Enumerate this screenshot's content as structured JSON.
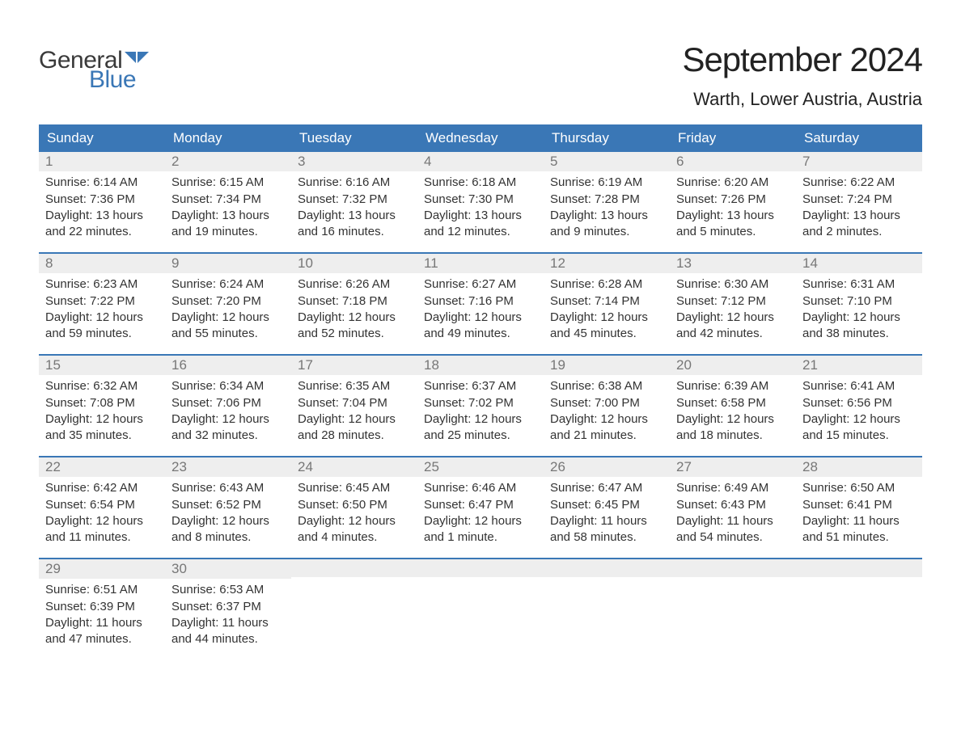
{
  "brand": {
    "word1": "General",
    "word2": "Blue",
    "word1_color": "#3a3a3a",
    "word2_color": "#3a77b6",
    "flag_color": "#3a77b6"
  },
  "title": "September 2024",
  "location": "Warth, Lower Austria, Austria",
  "colors": {
    "header_bg": "#3a77b6",
    "header_text": "#ffffff",
    "daynum_bg": "#eeeeee",
    "daynum_text": "#777777",
    "body_text": "#333333",
    "week_border": "#3a77b6",
    "page_bg": "#ffffff"
  },
  "font": {
    "family": "Arial",
    "title_size_pt": 32,
    "location_size_pt": 17,
    "dayhead_size_pt": 13,
    "daynum_size_pt": 13,
    "body_size_pt": 11
  },
  "day_headers": [
    "Sunday",
    "Monday",
    "Tuesday",
    "Wednesday",
    "Thursday",
    "Friday",
    "Saturday"
  ],
  "weeks": [
    [
      {
        "n": "1",
        "sunrise": "Sunrise: 6:14 AM",
        "sunset": "Sunset: 7:36 PM",
        "d1": "Daylight: 13 hours",
        "d2": "and 22 minutes."
      },
      {
        "n": "2",
        "sunrise": "Sunrise: 6:15 AM",
        "sunset": "Sunset: 7:34 PM",
        "d1": "Daylight: 13 hours",
        "d2": "and 19 minutes."
      },
      {
        "n": "3",
        "sunrise": "Sunrise: 6:16 AM",
        "sunset": "Sunset: 7:32 PM",
        "d1": "Daylight: 13 hours",
        "d2": "and 16 minutes."
      },
      {
        "n": "4",
        "sunrise": "Sunrise: 6:18 AM",
        "sunset": "Sunset: 7:30 PM",
        "d1": "Daylight: 13 hours",
        "d2": "and 12 minutes."
      },
      {
        "n": "5",
        "sunrise": "Sunrise: 6:19 AM",
        "sunset": "Sunset: 7:28 PM",
        "d1": "Daylight: 13 hours",
        "d2": "and 9 minutes."
      },
      {
        "n": "6",
        "sunrise": "Sunrise: 6:20 AM",
        "sunset": "Sunset: 7:26 PM",
        "d1": "Daylight: 13 hours",
        "d2": "and 5 minutes."
      },
      {
        "n": "7",
        "sunrise": "Sunrise: 6:22 AM",
        "sunset": "Sunset: 7:24 PM",
        "d1": "Daylight: 13 hours",
        "d2": "and 2 minutes."
      }
    ],
    [
      {
        "n": "8",
        "sunrise": "Sunrise: 6:23 AM",
        "sunset": "Sunset: 7:22 PM",
        "d1": "Daylight: 12 hours",
        "d2": "and 59 minutes."
      },
      {
        "n": "9",
        "sunrise": "Sunrise: 6:24 AM",
        "sunset": "Sunset: 7:20 PM",
        "d1": "Daylight: 12 hours",
        "d2": "and 55 minutes."
      },
      {
        "n": "10",
        "sunrise": "Sunrise: 6:26 AM",
        "sunset": "Sunset: 7:18 PM",
        "d1": "Daylight: 12 hours",
        "d2": "and 52 minutes."
      },
      {
        "n": "11",
        "sunrise": "Sunrise: 6:27 AM",
        "sunset": "Sunset: 7:16 PM",
        "d1": "Daylight: 12 hours",
        "d2": "and 49 minutes."
      },
      {
        "n": "12",
        "sunrise": "Sunrise: 6:28 AM",
        "sunset": "Sunset: 7:14 PM",
        "d1": "Daylight: 12 hours",
        "d2": "and 45 minutes."
      },
      {
        "n": "13",
        "sunrise": "Sunrise: 6:30 AM",
        "sunset": "Sunset: 7:12 PM",
        "d1": "Daylight: 12 hours",
        "d2": "and 42 minutes."
      },
      {
        "n": "14",
        "sunrise": "Sunrise: 6:31 AM",
        "sunset": "Sunset: 7:10 PM",
        "d1": "Daylight: 12 hours",
        "d2": "and 38 minutes."
      }
    ],
    [
      {
        "n": "15",
        "sunrise": "Sunrise: 6:32 AM",
        "sunset": "Sunset: 7:08 PM",
        "d1": "Daylight: 12 hours",
        "d2": "and 35 minutes."
      },
      {
        "n": "16",
        "sunrise": "Sunrise: 6:34 AM",
        "sunset": "Sunset: 7:06 PM",
        "d1": "Daylight: 12 hours",
        "d2": "and 32 minutes."
      },
      {
        "n": "17",
        "sunrise": "Sunrise: 6:35 AM",
        "sunset": "Sunset: 7:04 PM",
        "d1": "Daylight: 12 hours",
        "d2": "and 28 minutes."
      },
      {
        "n": "18",
        "sunrise": "Sunrise: 6:37 AM",
        "sunset": "Sunset: 7:02 PM",
        "d1": "Daylight: 12 hours",
        "d2": "and 25 minutes."
      },
      {
        "n": "19",
        "sunrise": "Sunrise: 6:38 AM",
        "sunset": "Sunset: 7:00 PM",
        "d1": "Daylight: 12 hours",
        "d2": "and 21 minutes."
      },
      {
        "n": "20",
        "sunrise": "Sunrise: 6:39 AM",
        "sunset": "Sunset: 6:58 PM",
        "d1": "Daylight: 12 hours",
        "d2": "and 18 minutes."
      },
      {
        "n": "21",
        "sunrise": "Sunrise: 6:41 AM",
        "sunset": "Sunset: 6:56 PM",
        "d1": "Daylight: 12 hours",
        "d2": "and 15 minutes."
      }
    ],
    [
      {
        "n": "22",
        "sunrise": "Sunrise: 6:42 AM",
        "sunset": "Sunset: 6:54 PM",
        "d1": "Daylight: 12 hours",
        "d2": "and 11 minutes."
      },
      {
        "n": "23",
        "sunrise": "Sunrise: 6:43 AM",
        "sunset": "Sunset: 6:52 PM",
        "d1": "Daylight: 12 hours",
        "d2": "and 8 minutes."
      },
      {
        "n": "24",
        "sunrise": "Sunrise: 6:45 AM",
        "sunset": "Sunset: 6:50 PM",
        "d1": "Daylight: 12 hours",
        "d2": "and 4 minutes."
      },
      {
        "n": "25",
        "sunrise": "Sunrise: 6:46 AM",
        "sunset": "Sunset: 6:47 PM",
        "d1": "Daylight: 12 hours",
        "d2": "and 1 minute."
      },
      {
        "n": "26",
        "sunrise": "Sunrise: 6:47 AM",
        "sunset": "Sunset: 6:45 PM",
        "d1": "Daylight: 11 hours",
        "d2": "and 58 minutes."
      },
      {
        "n": "27",
        "sunrise": "Sunrise: 6:49 AM",
        "sunset": "Sunset: 6:43 PM",
        "d1": "Daylight: 11 hours",
        "d2": "and 54 minutes."
      },
      {
        "n": "28",
        "sunrise": "Sunrise: 6:50 AM",
        "sunset": "Sunset: 6:41 PM",
        "d1": "Daylight: 11 hours",
        "d2": "and 51 minutes."
      }
    ],
    [
      {
        "n": "29",
        "sunrise": "Sunrise: 6:51 AM",
        "sunset": "Sunset: 6:39 PM",
        "d1": "Daylight: 11 hours",
        "d2": "and 47 minutes."
      },
      {
        "n": "30",
        "sunrise": "Sunrise: 6:53 AM",
        "sunset": "Sunset: 6:37 PM",
        "d1": "Daylight: 11 hours",
        "d2": "and 44 minutes."
      },
      {
        "n": "",
        "sunrise": "",
        "sunset": "",
        "d1": "",
        "d2": ""
      },
      {
        "n": "",
        "sunrise": "",
        "sunset": "",
        "d1": "",
        "d2": ""
      },
      {
        "n": "",
        "sunrise": "",
        "sunset": "",
        "d1": "",
        "d2": ""
      },
      {
        "n": "",
        "sunrise": "",
        "sunset": "",
        "d1": "",
        "d2": ""
      },
      {
        "n": "",
        "sunrise": "",
        "sunset": "",
        "d1": "",
        "d2": ""
      }
    ]
  ]
}
